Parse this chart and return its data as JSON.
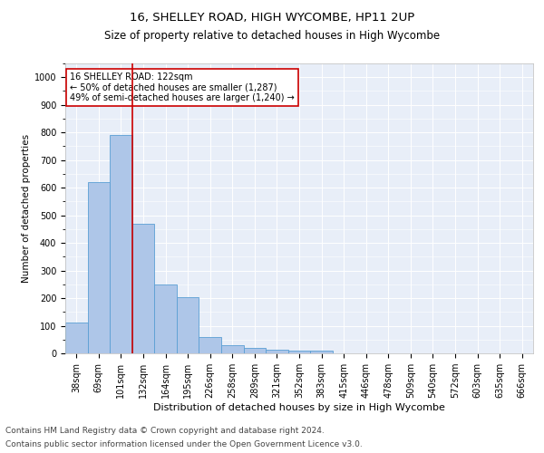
{
  "title1": "16, SHELLEY ROAD, HIGH WYCOMBE, HP11 2UP",
  "title2": "Size of property relative to detached houses in High Wycombe",
  "xlabel": "Distribution of detached houses by size in High Wycombe",
  "ylabel": "Number of detached properties",
  "footer1": "Contains HM Land Registry data © Crown copyright and database right 2024.",
  "footer2": "Contains public sector information licensed under the Open Government Licence v3.0.",
  "bin_labels": [
    "38sqm",
    "69sqm",
    "101sqm",
    "132sqm",
    "164sqm",
    "195sqm",
    "226sqm",
    "258sqm",
    "289sqm",
    "321sqm",
    "352sqm",
    "383sqm",
    "415sqm",
    "446sqm",
    "478sqm",
    "509sqm",
    "540sqm",
    "572sqm",
    "603sqm",
    "635sqm",
    "666sqm"
  ],
  "bar_values": [
    110,
    620,
    790,
    470,
    250,
    205,
    60,
    30,
    20,
    12,
    10,
    10,
    0,
    0,
    0,
    0,
    0,
    0,
    0,
    0
  ],
  "bar_color": "#aec6e8",
  "bar_edge_color": "#5a9fd4",
  "vline_x": 2.5,
  "vline_color": "#cc0000",
  "annotation_text": "16 SHELLEY ROAD: 122sqm\n← 50% of detached houses are smaller (1,287)\n49% of semi-detached houses are larger (1,240) →",
  "annotation_box_color": "#cc0000",
  "ylim": [
    0,
    1050
  ],
  "yticks": [
    0,
    100,
    200,
    300,
    400,
    500,
    600,
    700,
    800,
    900,
    1000
  ],
  "bg_color": "#e8eef8",
  "grid_color": "#ffffff",
  "title1_fontsize": 9.5,
  "title2_fontsize": 8.5,
  "xlabel_fontsize": 8,
  "ylabel_fontsize": 7.5,
  "tick_fontsize": 7,
  "ann_fontsize": 7,
  "footer_fontsize": 6.5
}
